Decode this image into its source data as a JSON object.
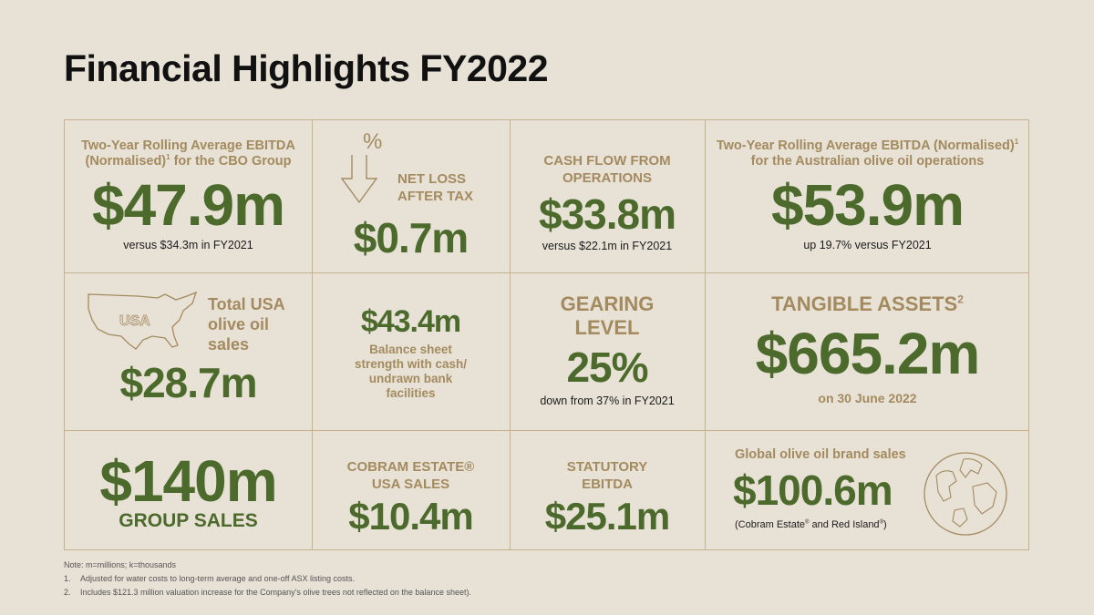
{
  "title": "Financial Highlights FY2022",
  "colors": {
    "background": "#e7e1d6",
    "gold": "#a48b5f",
    "green": "#4c6a2b",
    "border": "#c6b38e"
  },
  "row1": {
    "cbo_ebitda": {
      "label_line1": "Two-Year Rolling Average EBITDA",
      "label_line2a": "(Normalised)",
      "label_sup": "1",
      "label_line2b": " for the CBO Group",
      "value": "$47.9m",
      "note": "versus $34.3m in FY2021"
    },
    "net_loss": {
      "icon_text": "%",
      "label_line1": "NET LOSS",
      "label_line2": "AFTER TAX",
      "value": "$0.7m"
    },
    "cash_flow": {
      "label_line1": "CASH FLOW FROM",
      "label_line2": "OPERATIONS",
      "value": "$33.8m",
      "note": "versus $22.1m in FY2021"
    },
    "aus_ebitda": {
      "label_line1a": "Two-Year Rolling Average EBITDA (Normalised)",
      "label_sup": "1",
      "label_line2": "for the Australian olive oil operations",
      "value": "$53.9m",
      "note": "up 19.7% versus FY2021"
    }
  },
  "row2": {
    "usa_sales": {
      "map_text": "USA",
      "label_line1": "Total USA",
      "label_line2": "olive oil",
      "label_line3": "sales",
      "value": "$28.7m"
    },
    "balance": {
      "value": "$43.4m",
      "label_line1": "Balance sheet",
      "label_line2": "strength with cash/",
      "label_line3": "undrawn bank",
      "label_line4": "facilities"
    },
    "gearing": {
      "label_line1": "GEARING",
      "label_line2": "LEVEL",
      "value": "25%",
      "note": "down from 37% in FY2021"
    },
    "tangible": {
      "label": "TANGIBLE ASSETS",
      "label_sup": "2",
      "value": "$665.2m",
      "note": "on 30 June 2022"
    }
  },
  "row3": {
    "group_sales": {
      "value": "$140m",
      "label": "GROUP SALES"
    },
    "cobram_usa": {
      "label_line1": "COBRAM ESTATE®",
      "label_line2": "USA SALES",
      "value": "$10.4m"
    },
    "statutory": {
      "label_line1": "STATUTORY",
      "label_line2": "EBITDA",
      "value": "$25.1m"
    },
    "global": {
      "label": "Global olive oil brand sales",
      "value": "$100.6m",
      "note_a": "(Cobram Estate",
      "note_sup1": "®",
      "note_b": " and Red Island",
      "note_sup2": "®",
      "note_c": ")"
    }
  },
  "notes": {
    "line0": "Note: m=millions; k=thousands",
    "n1": "1.",
    "line1": "Adjusted for water costs to long-term average and one-off ASX listing costs.",
    "n2": "2.",
    "line2": "Includes $121.3 million valuation increase for the Company's olive trees not reflected on the balance sheet)."
  }
}
